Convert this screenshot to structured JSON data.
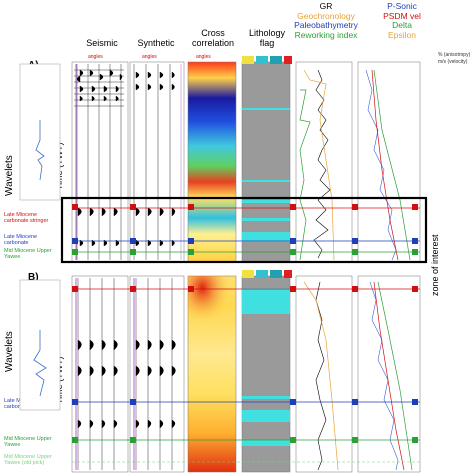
{
  "headers": {
    "seismic": "Seismic",
    "synthetic": "Synthetic",
    "cross_correlation": "Cross\ncorrelation",
    "lithology_flag": "Lithology\nflag"
  },
  "legend_left": [
    {
      "text": "GR",
      "color": "#000000"
    },
    {
      "text": "Geochronology",
      "color": "#e8a23a"
    },
    {
      "text": "Paleobathymetry",
      "color": "#1e3fb8"
    },
    {
      "text": "Reworking index",
      "color": "#2aa036"
    }
  ],
  "legend_right": [
    {
      "text": "P-Sonic",
      "color": "#1e3fb8"
    },
    {
      "text": "PSDM vel",
      "color": "#d01010"
    },
    {
      "text": "Delta",
      "color": "#2aa036"
    },
    {
      "text": "Epsilon",
      "color": "#e8a23a"
    }
  ],
  "units": [
    "% (anisotropy)",
    "m/s (velocity)"
  ],
  "panels": {
    "a": "A)",
    "b": "B)"
  },
  "wavelets_label": "Wavelets",
  "time_label": "Time (TWT)",
  "zone_of_interest": "zone of interest",
  "angles_label": "angles",
  "horizons_a": [
    {
      "text": "Late Miocene carbonate stringer",
      "color": "#d01010"
    },
    {
      "text": "Late Miocene carbonate",
      "color": "#1e3fb8"
    },
    {
      "text": "Mid Miocene Upper Yawee",
      "color": "#2aa036"
    }
  ],
  "horizons_b": [
    {
      "text": "Late Miocene carbonate",
      "color": "#1e3fb8"
    },
    {
      "text": "Mid Miocene Upper Yawee",
      "color": "#2aa036"
    },
    {
      "text": "Mid Miocene Upper Yawee (old pick)",
      "color": "#7ed07e"
    }
  ]
}
